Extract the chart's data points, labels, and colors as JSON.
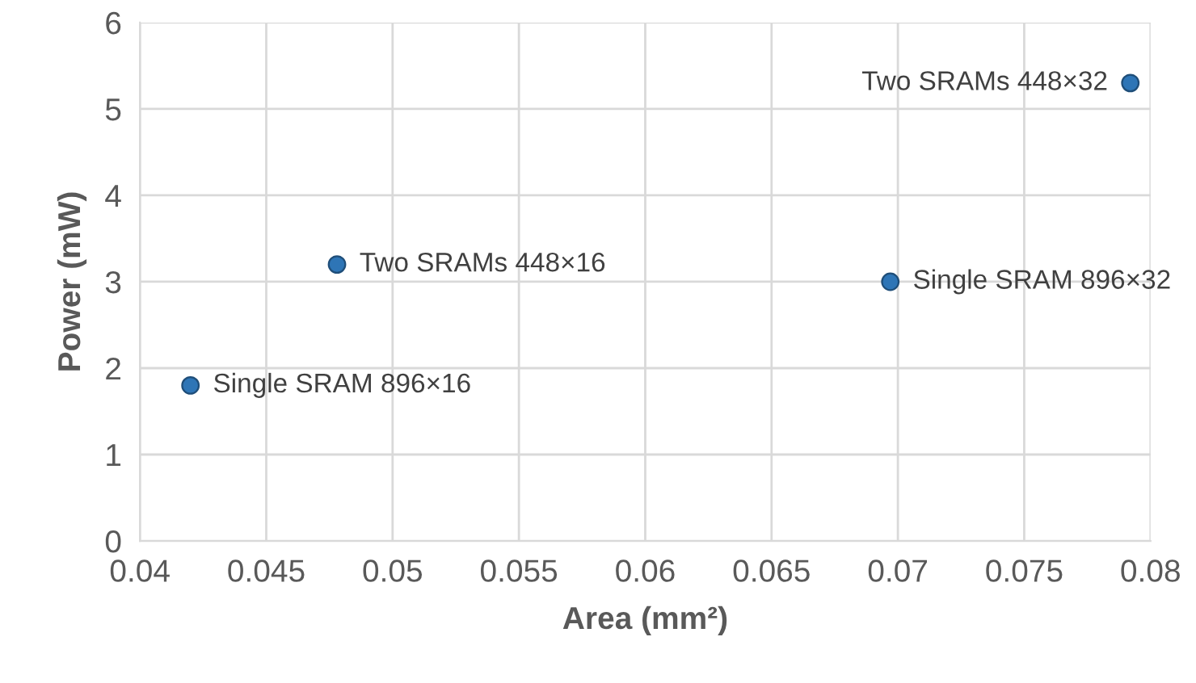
{
  "chart_data": {
    "type": "scatter",
    "xlabel": "Area (mm²)",
    "ylabel": "Power (mW)",
    "x": [
      0.042,
      0.0478,
      0.0697,
      0.0792
    ],
    "values": [
      1.8,
      3.2,
      3.0,
      5.3
    ],
    "color": "#2e75b6",
    "marker": "circle",
    "xlim": [
      0.04,
      0.08
    ],
    "ylim": [
      0,
      6
    ],
    "xticks": [
      0.04,
      0.045,
      0.05,
      0.055,
      0.06,
      0.065,
      0.07,
      0.075,
      0.08
    ],
    "yticks": [
      0,
      1,
      2,
      3,
      4,
      5,
      6
    ],
    "grid": true,
    "annotations": [
      {
        "text": "Single SRAM 896×16",
        "x": 0.042,
        "y": 1.8
      },
      {
        "text": "Two SRAMs 448×16",
        "x": 0.0478,
        "y": 3.2
      },
      {
        "text": "Single SRAM 896×32",
        "x": 0.0697,
        "y": 3.0
      },
      {
        "text": "Two SRAMs 448×32",
        "x": 0.0792,
        "y": 5.3
      }
    ]
  }
}
